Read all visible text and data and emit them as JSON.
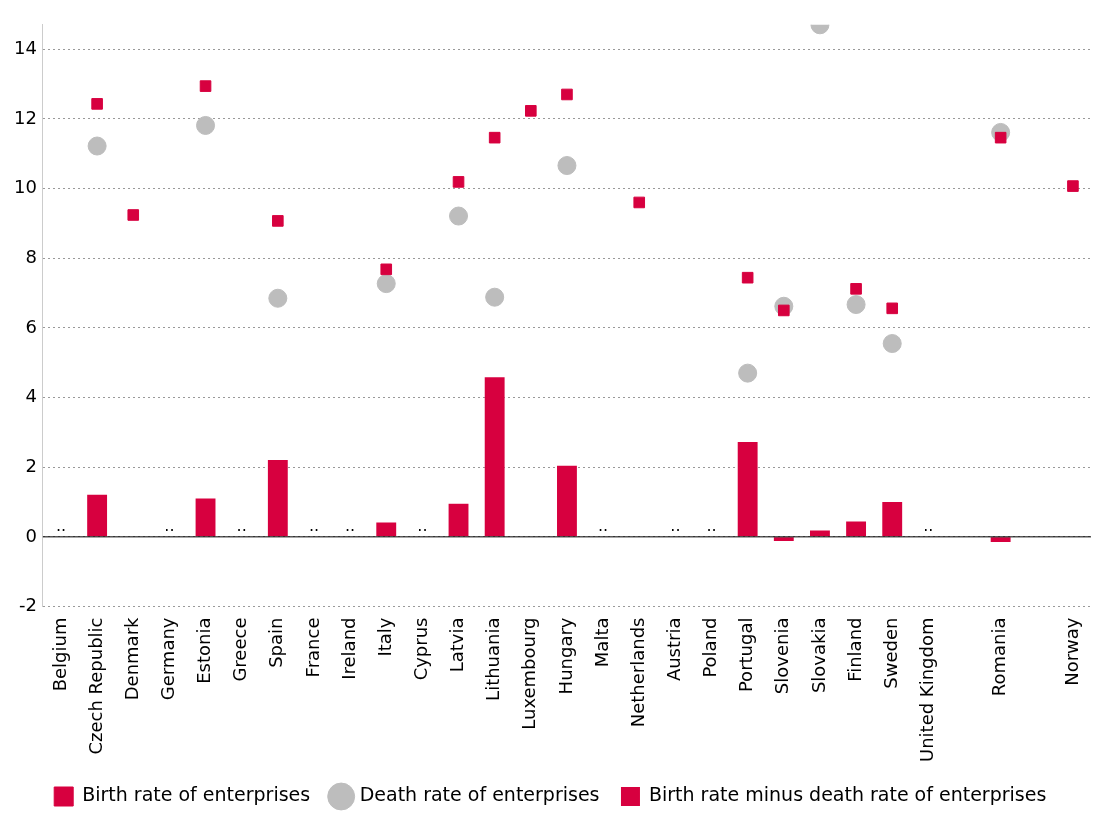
{
  "chart_data": {
    "type": "bar",
    "categories": [
      "Belgium",
      "Czech Republic",
      "Denmark",
      "Germany",
      "Estonia",
      "Greece",
      "Spain",
      "France",
      "Ireland",
      "Italy",
      "Cyprus",
      "Latvia",
      "Lithuania",
      "Luxembourg",
      "Hungary",
      "Malta",
      "Netherlands",
      "Austria",
      "Poland",
      "Portugal",
      "Slovenia",
      "Slovakia",
      "Finland",
      "Sweden",
      "United Kingdom",
      null,
      "Romania",
      null,
      "Norway"
    ],
    "series": [
      {
        "name": "Birth rate of enterprises",
        "type": "scatter",
        "marker": "square",
        "color": "#d7003f",
        "values": [
          null,
          12.43,
          9.24,
          null,
          12.94,
          null,
          9.07,
          null,
          null,
          7.68,
          null,
          10.19,
          11.46,
          12.23,
          12.7,
          null,
          9.6,
          null,
          null,
          7.44,
          6.5,
          null,
          7.12,
          6.56,
          null,
          null,
          11.46,
          null,
          10.07
        ]
      },
      {
        "name": "Death rate of enterprises",
        "type": "scatter",
        "marker": "circle",
        "color": "#bdbdbd",
        "values": [
          null,
          11.22,
          null,
          null,
          11.81,
          null,
          6.85,
          null,
          null,
          7.27,
          null,
          9.21,
          6.88,
          null,
          10.66,
          null,
          null,
          null,
          null,
          4.7,
          6.62,
          14.7,
          6.67,
          5.55,
          null,
          null,
          11.61,
          null,
          null
        ]
      },
      {
        "name": "Birth rate minus death rate of enterprises",
        "color": "#d7003f",
        "values": [
          null,
          1.21,
          null,
          null,
          1.1,
          null,
          2.21,
          null,
          null,
          0.41,
          null,
          0.95,
          4.58,
          null,
          2.04,
          null,
          null,
          null,
          null,
          2.72,
          -0.12,
          0.18,
          0.44,
          1.0,
          null,
          null,
          -0.15,
          null,
          null
        ],
        "value_labels": [
          "..",
          null,
          null,
          "..",
          null,
          "..",
          null,
          "..",
          "..",
          null,
          "..",
          null,
          null,
          null,
          null,
          "..",
          null,
          "..",
          "..",
          null,
          null,
          null,
          null,
          null,
          "..",
          null,
          null,
          null,
          null
        ]
      }
    ],
    "ylim": [
      -2,
      14.7
    ],
    "yticks": [
      -2,
      0,
      2,
      4,
      6,
      8,
      10,
      12,
      14
    ],
    "grid": "y",
    "legend": "bottom",
    "ref_lines": [
      {
        "axis": "y",
        "value": 0,
        "color": "#000000"
      }
    ]
  }
}
